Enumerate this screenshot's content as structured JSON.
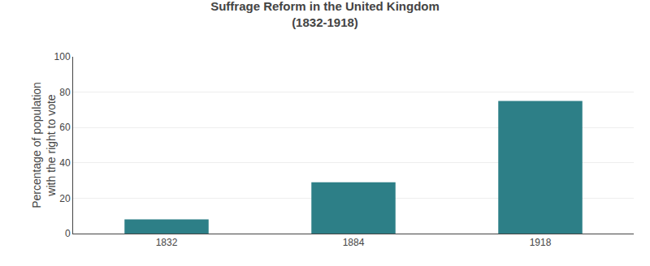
{
  "chart_data": {
    "type": "bar",
    "title": "Suffrage Reform in the United Kingdom\n(1832-1918)",
    "ylabel": "Percentage of population\nwith the right to vote",
    "categories": [
      "1832",
      "1884",
      "1918"
    ],
    "values": [
      8,
      29,
      75
    ],
    "color": "#2d7f87",
    "ylim": [
      0,
      100
    ],
    "yticks": [
      0,
      20,
      40,
      60,
      80,
      100
    ],
    "grid": true
  }
}
